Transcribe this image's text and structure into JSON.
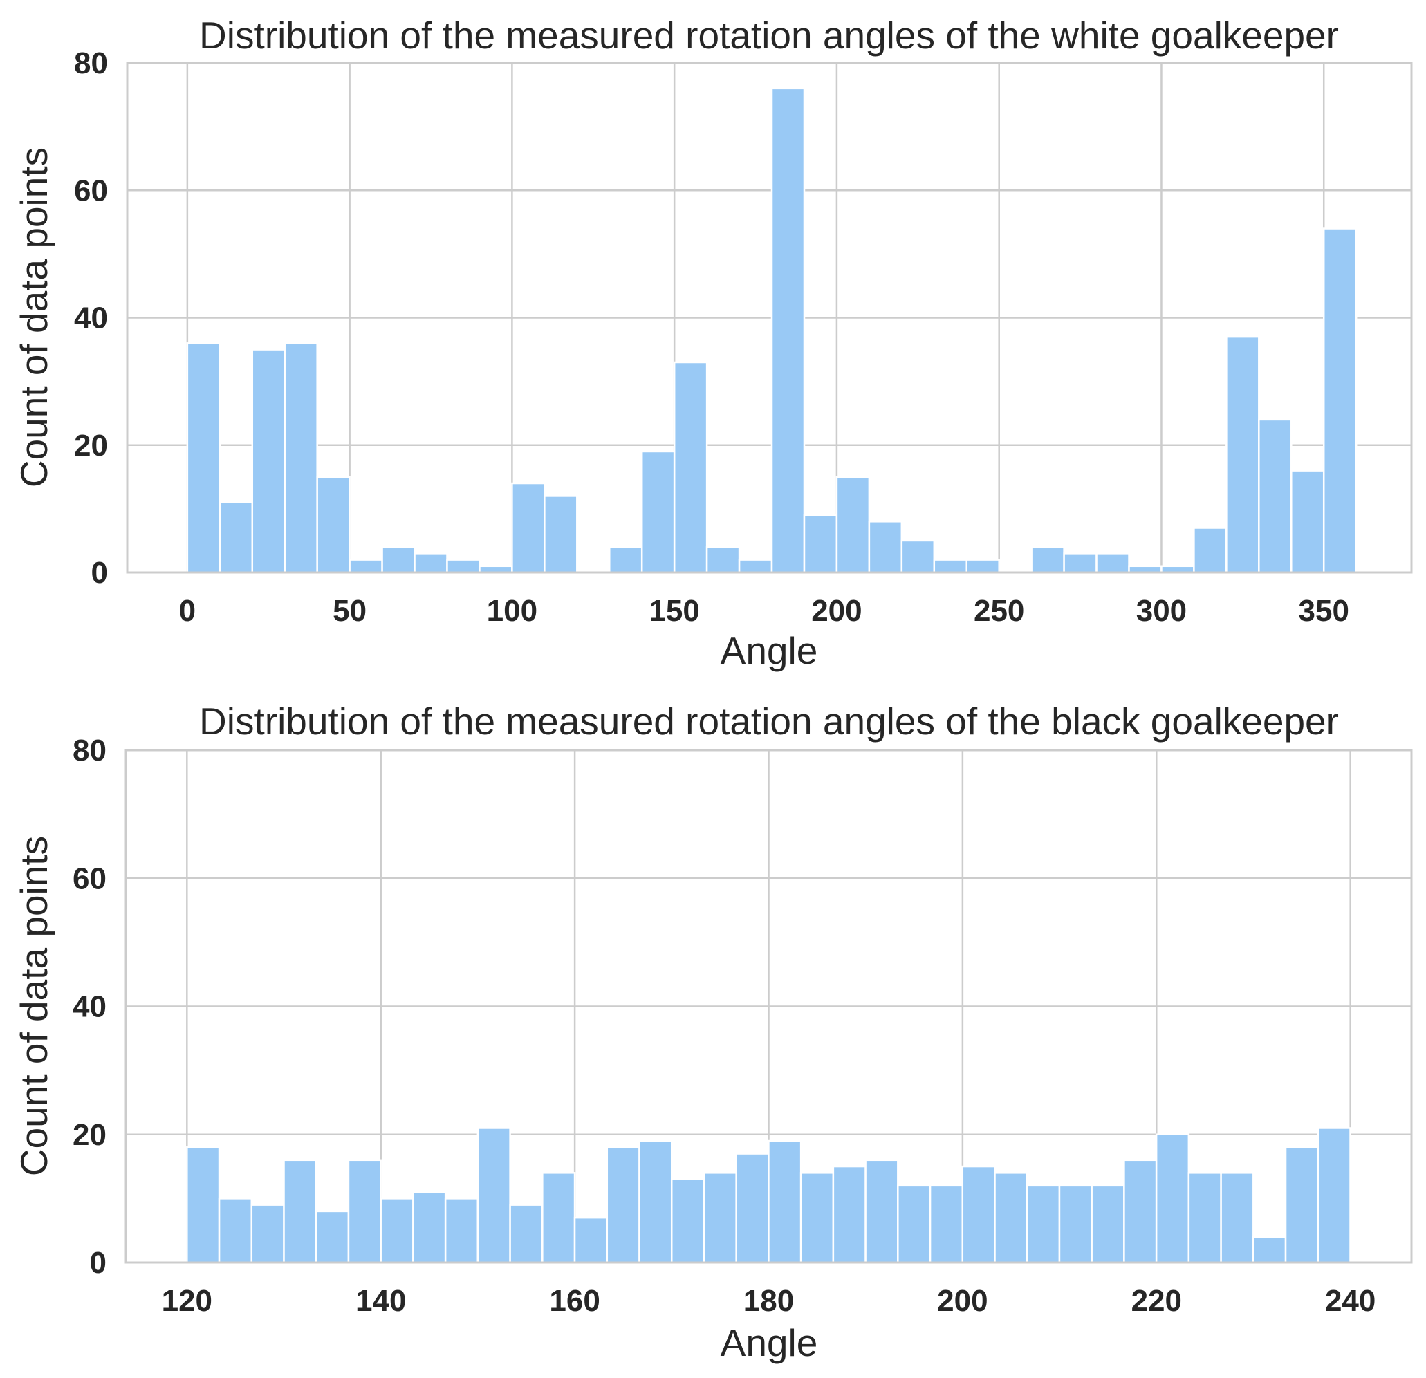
{
  "chart_data": [
    {
      "type": "bar",
      "title": "Distribution of the measured rotation angles of the white goalkeeper",
      "xlabel": "Angle",
      "ylabel": "Count of data points",
      "color": "#99c9f5",
      "grid": true,
      "xlim": [
        -18.5,
        377
      ],
      "ylim": [
        0,
        80
      ],
      "xticks": [
        "0",
        "50",
        "100",
        "150",
        "200",
        "250",
        "300",
        "350"
      ],
      "xtick_values": [
        0,
        50,
        100,
        150,
        200,
        250,
        300,
        350
      ],
      "yticks": [
        "0",
        "20",
        "40",
        "60",
        "80"
      ],
      "ytick_values": [
        0,
        20,
        40,
        60,
        80
      ],
      "bin_start": 0,
      "bin_width": 10,
      "values": [
        36,
        11,
        35,
        36,
        15,
        2,
        4,
        3,
        2,
        1,
        14,
        12,
        0,
        4,
        19,
        33,
        4,
        2,
        76,
        9,
        15,
        8,
        5,
        2,
        2,
        0,
        4,
        3,
        3,
        1,
        1,
        7,
        37,
        24,
        16,
        54
      ]
    },
    {
      "type": "bar",
      "title": "Distribution of the measured rotation angles of the black goalkeeper",
      "xlabel": "Angle",
      "ylabel": "Count of data points",
      "color": "#99c9f5",
      "grid": true,
      "xlim": [
        113.7,
        246.3
      ],
      "ylim": [
        0,
        80
      ],
      "xticks": [
        "120",
        "140",
        "160",
        "180",
        "200",
        "220",
        "240"
      ],
      "xtick_values": [
        120,
        140,
        160,
        180,
        200,
        220,
        240
      ],
      "yticks": [
        "0",
        "20",
        "40",
        "60",
        "80"
      ],
      "ytick_values": [
        0,
        20,
        40,
        60,
        80
      ],
      "bin_start": 120,
      "bin_width": 3.333,
      "values": [
        18,
        10,
        9,
        16,
        8,
        16,
        10,
        11,
        10,
        21,
        9,
        14,
        7,
        18,
        19,
        13,
        14,
        17,
        19,
        14,
        15,
        16,
        12,
        12,
        15,
        14,
        12,
        12,
        12,
        16,
        20,
        14,
        14,
        4,
        18,
        21
      ]
    }
  ]
}
